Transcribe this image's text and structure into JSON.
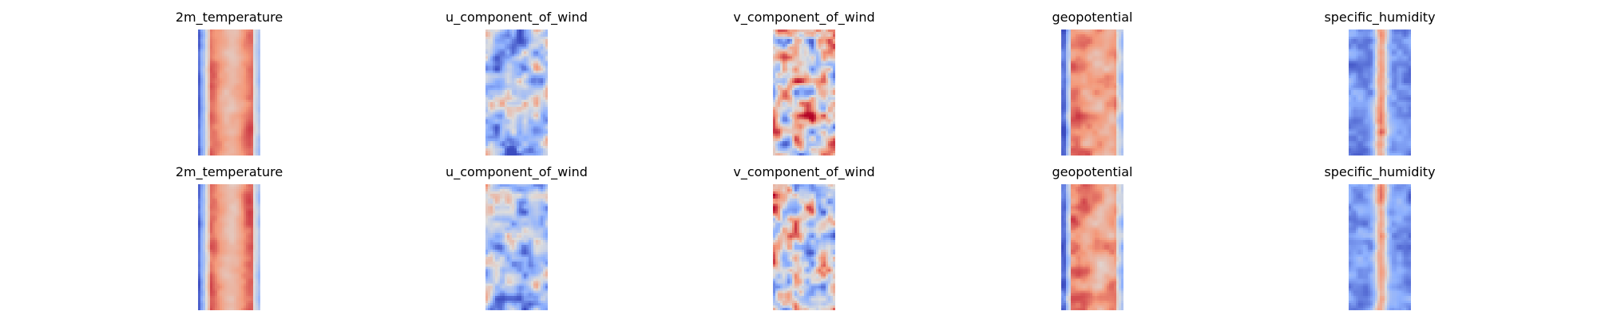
{
  "chart_data": [
    {
      "type": "heatmap",
      "title": "2m_temperature",
      "row": 1,
      "column": 1,
      "colormap": "coolwarm",
      "pattern": "banded-warm",
      "seed": 11
    },
    {
      "type": "heatmap",
      "title": "u_component_of_wind",
      "row": 1,
      "column": 2,
      "colormap": "coolwarm",
      "pattern": "u-wind",
      "seed": 12
    },
    {
      "type": "heatmap",
      "title": "v_component_of_wind",
      "row": 1,
      "column": 3,
      "colormap": "coolwarm",
      "pattern": "v-wind",
      "seed": 13
    },
    {
      "type": "heatmap",
      "title": "geopotential",
      "row": 1,
      "column": 4,
      "colormap": "coolwarm",
      "pattern": "banded-warm-noisy",
      "seed": 14
    },
    {
      "type": "heatmap",
      "title": "specific_humidity",
      "row": 1,
      "column": 5,
      "colormap": "coolwarm",
      "pattern": "humidity",
      "seed": 15
    },
    {
      "type": "heatmap",
      "title": "2m_temperature",
      "row": 2,
      "column": 1,
      "colormap": "coolwarm",
      "pattern": "banded-warm",
      "seed": 21
    },
    {
      "type": "heatmap",
      "title": "u_component_of_wind",
      "row": 2,
      "column": 2,
      "colormap": "coolwarm",
      "pattern": "u-wind",
      "seed": 22
    },
    {
      "type": "heatmap",
      "title": "v_component_of_wind",
      "row": 2,
      "column": 3,
      "colormap": "coolwarm",
      "pattern": "v-wind",
      "seed": 23
    },
    {
      "type": "heatmap",
      "title": "geopotential",
      "row": 2,
      "column": 4,
      "colormap": "coolwarm",
      "pattern": "banded-warm-noisy",
      "seed": 24
    },
    {
      "type": "heatmap",
      "title": "specific_humidity",
      "row": 2,
      "column": 5,
      "colormap": "coolwarm",
      "pattern": "humidity",
      "seed": 25
    }
  ],
  "colormap_stops": [
    "#3b4cc0",
    "#8db0fe",
    "#dddddd",
    "#f49a7b",
    "#b40426"
  ]
}
